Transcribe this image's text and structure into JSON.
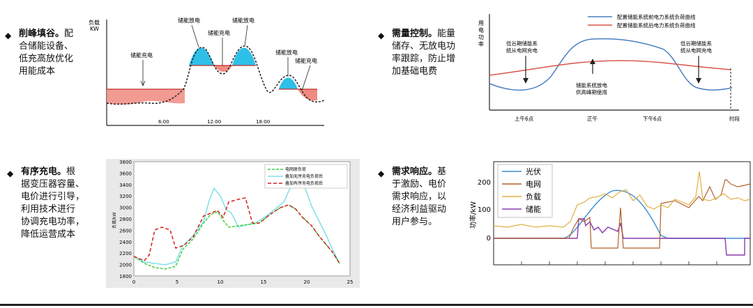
{
  "panels": {
    "peak_valley": {
      "heading": "削峰填谷。",
      "text_lines": [
        "配",
        "合储能设备、",
        "低充高放优化",
        "用能成本"
      ],
      "y_unit_line1": "负载",
      "y_unit_line2": "KW",
      "labels": {
        "charge_left": "储能充电",
        "discharge_1": "储能放电",
        "charge_mid": "储能充电",
        "discharge_2": "储能放电",
        "discharge_3": "储能放电",
        "charge_right": "储能充电"
      },
      "x_ticks": [
        "6:00",
        "12:00",
        "18:00"
      ]
    },
    "demand_control": {
      "heading": "需量控制。",
      "text_lines": [
        "能量",
        "储存、无放电功",
        "率跟踪，防止增",
        "加基础电费"
      ],
      "y_label": "用电功率",
      "legend": [
        "配置储能系统前电力系统负荷曲线",
        "配置储能系统后电力系统负荷曲线"
      ],
      "ann_left": [
        "低谷期储能系",
        "统从电网充电"
      ],
      "ann_mid": [
        "储能系统放电",
        "供高峰期使用"
      ],
      "ann_right": [
        "低谷期储能系",
        "统从电网充电"
      ],
      "x_ticks": [
        "上午6点",
        "正午",
        "下午6点",
        "时段"
      ],
      "colors": {
        "before": "#4a7fc1",
        "after": "#d9554a"
      }
    },
    "ordered_charging": {
      "heading": "有序充电。",
      "text_lines": [
        "根",
        "据变压器容量、",
        "电价进行引导，",
        "利用技术进行",
        "协调充电功率，",
        "降低运营成本"
      ],
      "y_label": "负荷/kW",
      "legend": [
        "电网原负荷",
        "叠加无序充电负荷后",
        "叠加有序充电负荷后"
      ],
      "y_ticks": [
        "3800",
        "3600",
        "3400",
        "3200",
        "3000",
        "2800",
        "2600",
        "2400",
        "2200",
        "2000",
        "1800"
      ],
      "x_ticks": [
        "0",
        "5",
        "10",
        "15",
        "20",
        "25"
      ],
      "colors": {
        "base": "#3cd23c",
        "unordered": "#7fe0e8",
        "ordered": "#d62020"
      }
    },
    "demand_response": {
      "heading": "需求响应。",
      "text_lines": [
        "基",
        "于激励、电价",
        "需求响应，以",
        "经济利益驱动",
        "用户参与。"
      ],
      "y_label": "功率/kW",
      "legend": [
        "光伏",
        "电网",
        "负载",
        "储能"
      ],
      "y_ticks": [
        "200",
        "100",
        "0"
      ],
      "colors": {
        "pv": "#3b8fd0",
        "grid": "#b0602a",
        "load": "#e0b040",
        "storage": "#8a3bb0"
      }
    }
  }
}
